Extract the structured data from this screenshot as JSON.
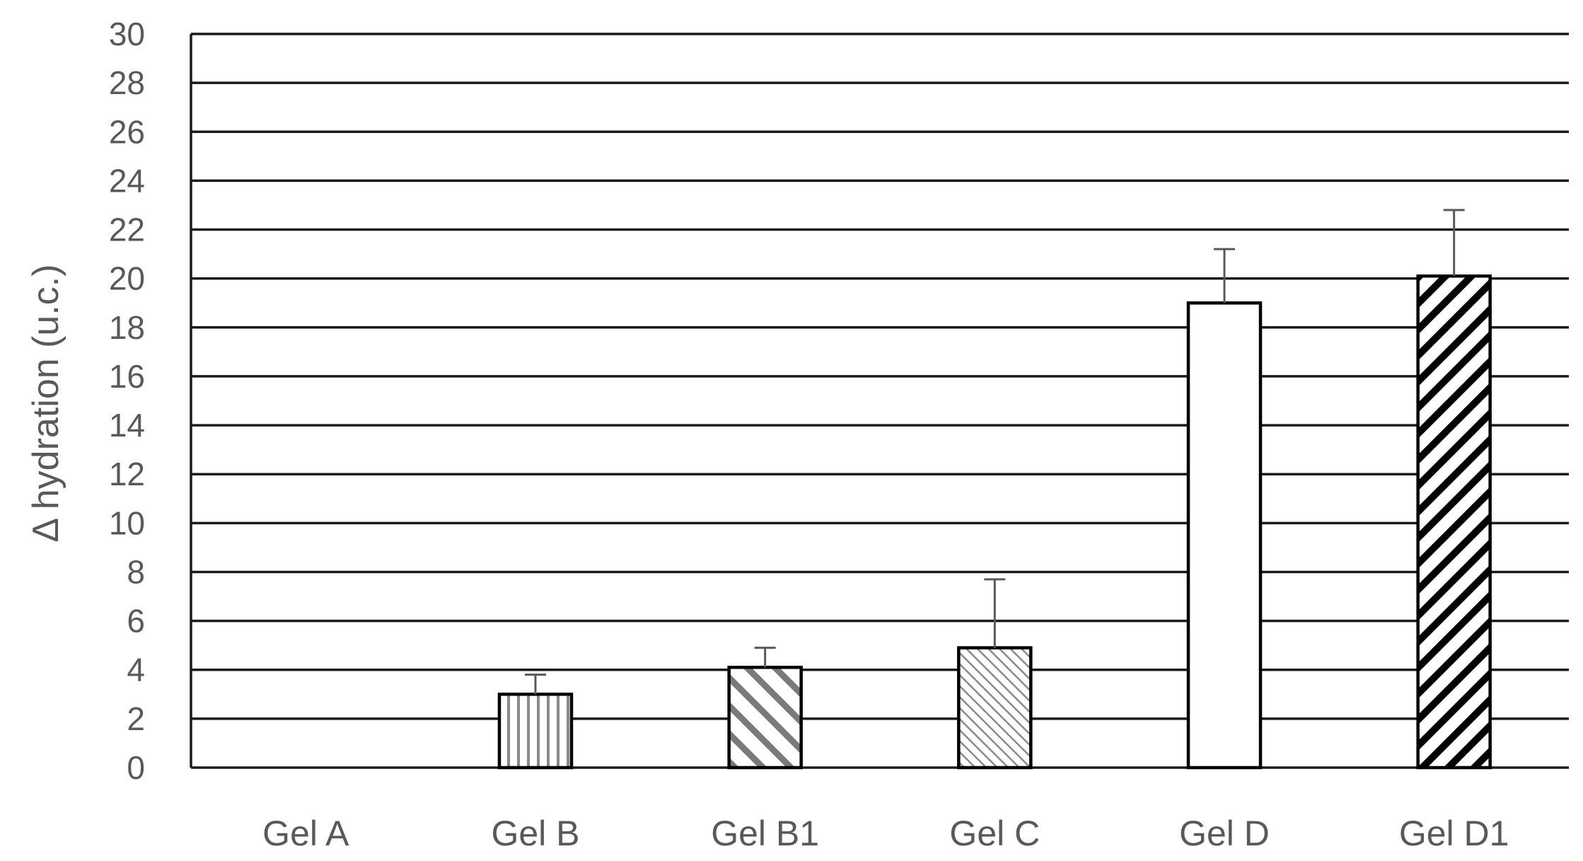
{
  "chart_data": {
    "type": "bar",
    "title": "",
    "xlabel": "",
    "ylabel": "Δ hydration (u.c.)",
    "ylim": [
      0,
      30
    ],
    "yticks": [
      0,
      2,
      4,
      6,
      8,
      10,
      12,
      14,
      16,
      18,
      20,
      22,
      24,
      26,
      28,
      30
    ],
    "grid": true,
    "legend": "none",
    "categories": [
      "Gel A",
      "Gel B",
      "Gel B1",
      "Gel C",
      "Gel D",
      "Gel D1"
    ],
    "values": [
      0,
      3,
      4.1,
      4.9,
      19,
      20.1
    ],
    "error_plus": [
      0,
      0.8,
      0.8,
      2.8,
      2.2,
      2.7
    ],
    "fill_patterns": [
      "none",
      "vertical-lines",
      "wide-diagonal-stripes",
      "fine-diagonal-stripes",
      "solid-white",
      "bold-diagonal-stripes"
    ],
    "colors": {
      "gridline": "#1a1a1a",
      "bar_outline": "#000000",
      "error_bar": "#595959",
      "text": "#595959"
    }
  }
}
